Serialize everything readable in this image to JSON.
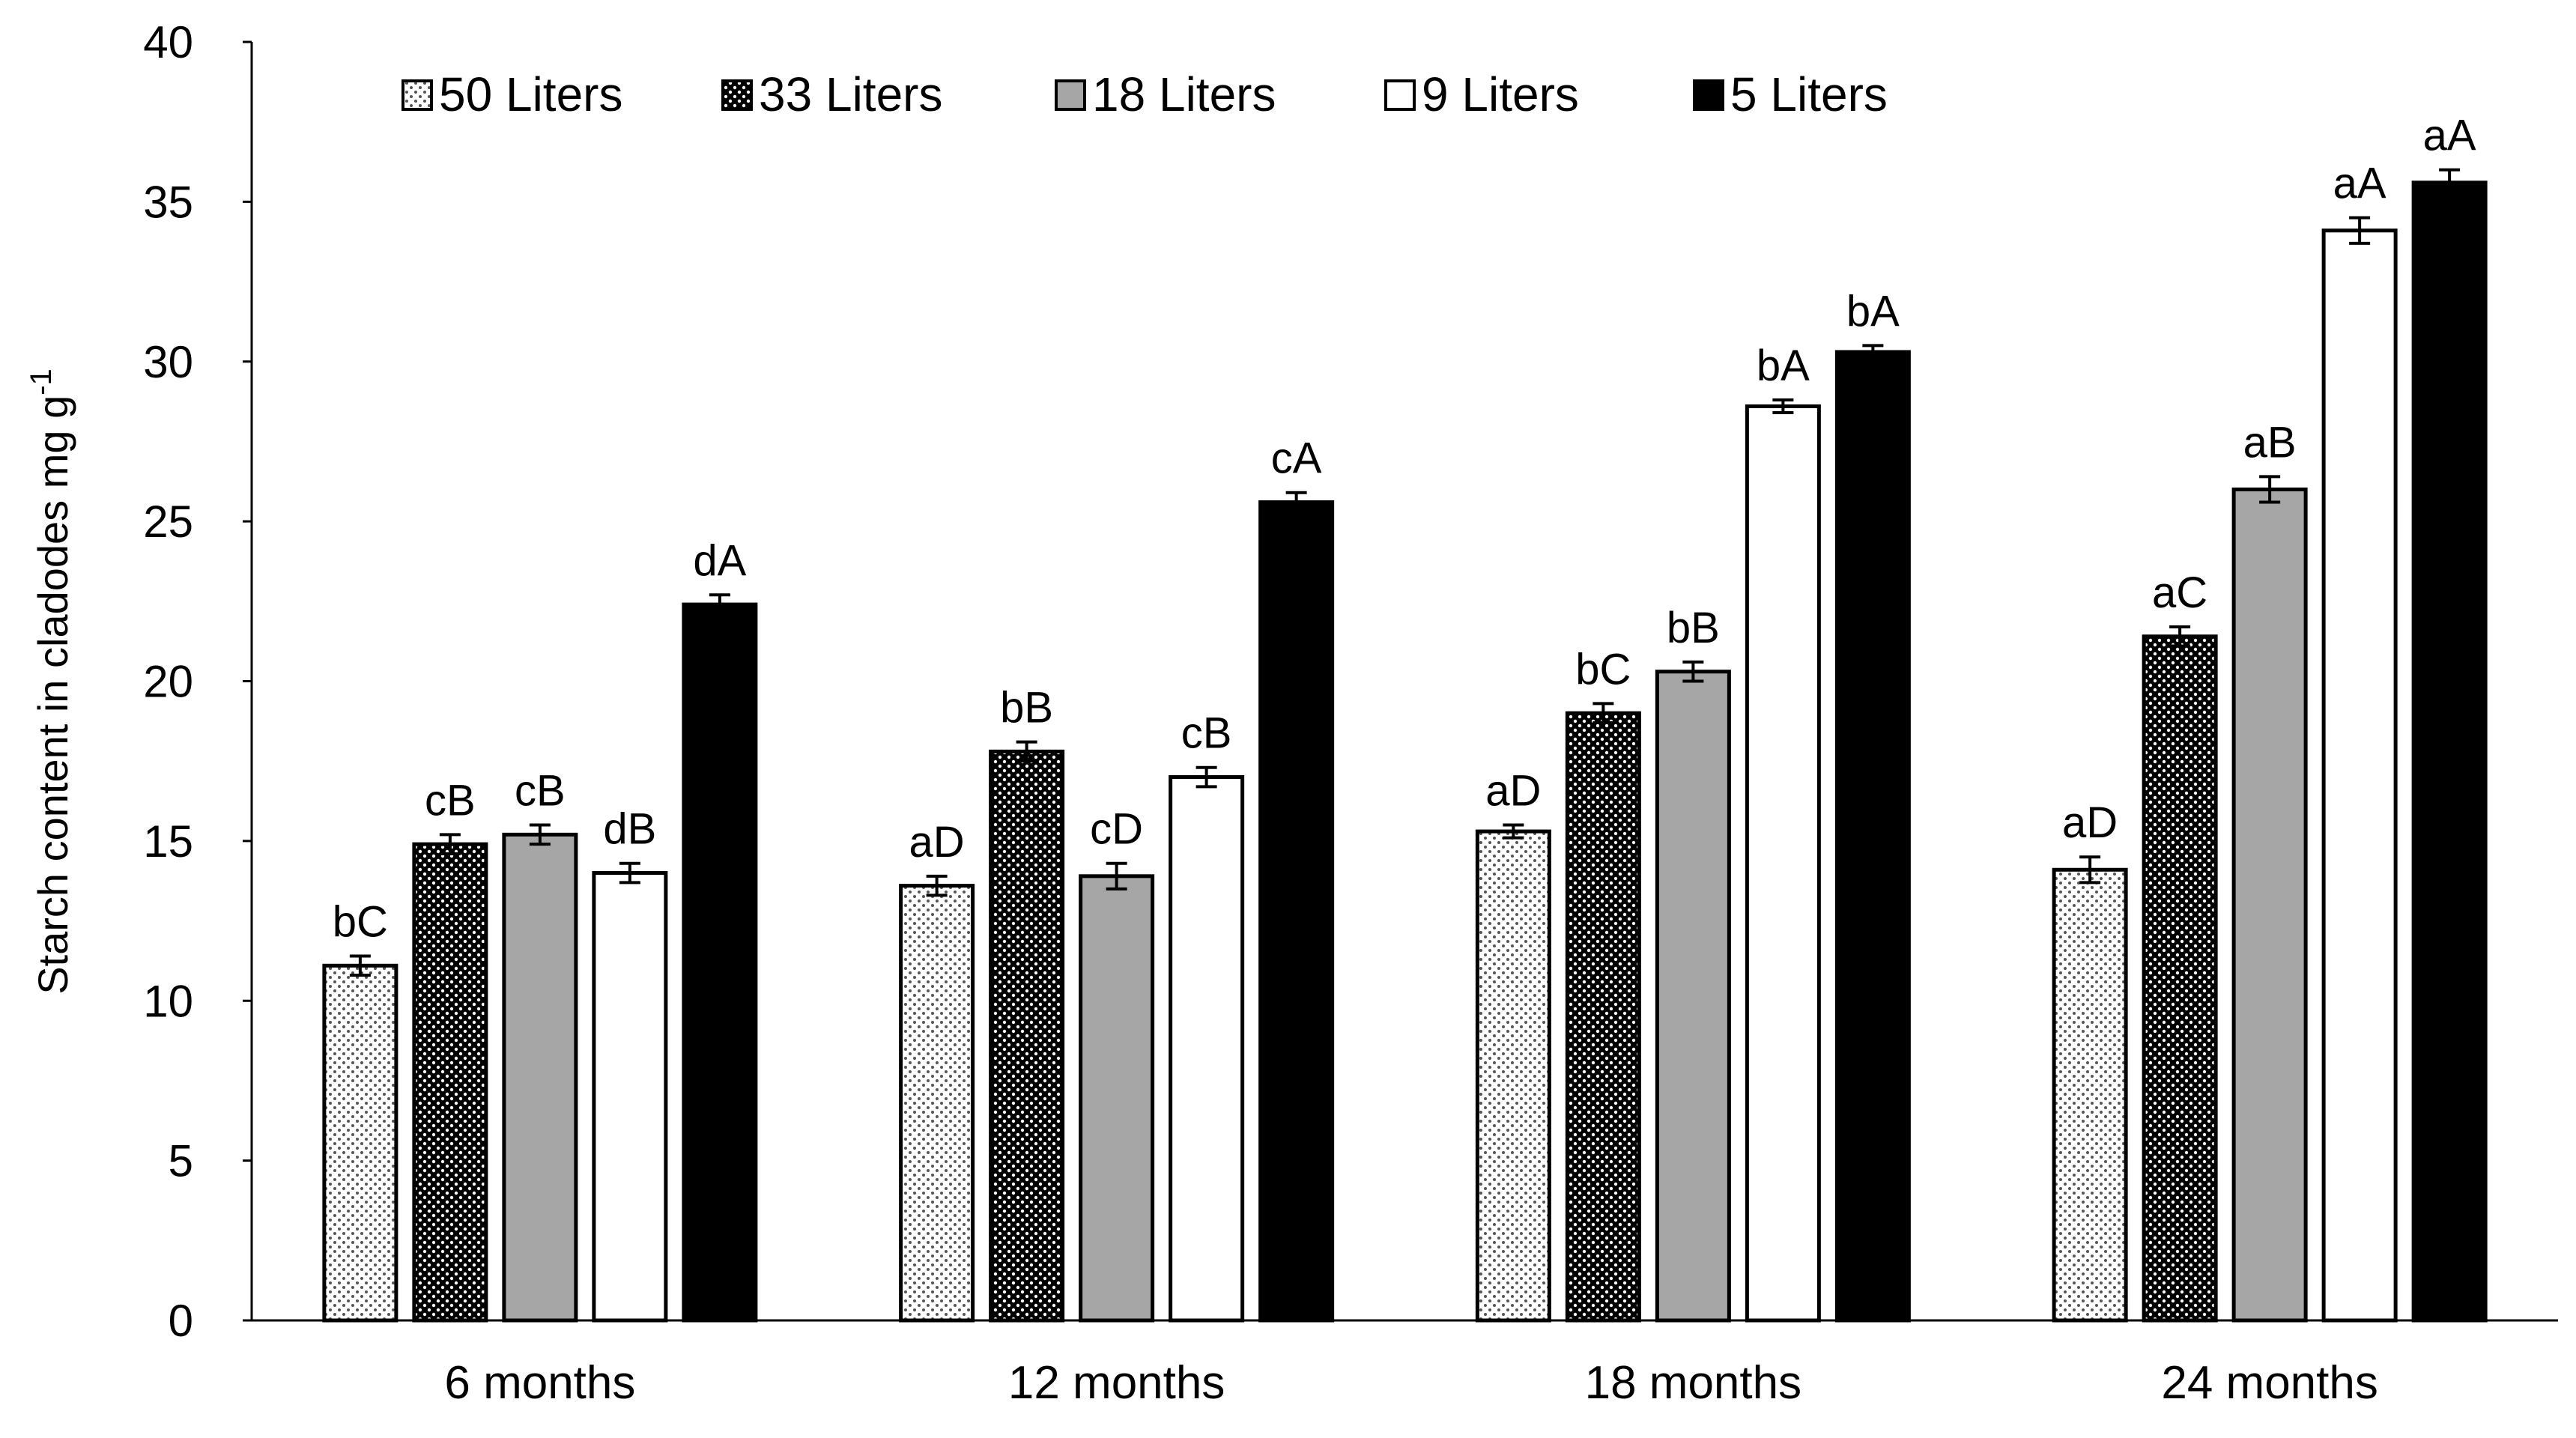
{
  "chart_data": {
    "type": "bar",
    "title": "",
    "xlabel": "",
    "ylabel": "Starch content in cladodes mg g",
    "ylabel_superscript": "-1",
    "ylim": [
      0,
      40
    ],
    "yticks": [
      0,
      5,
      10,
      15,
      20,
      25,
      30,
      35,
      40
    ],
    "legend_position": "top",
    "categories": [
      "6 months",
      "12 months",
      "18 months",
      "24 months"
    ],
    "series": [
      {
        "name": "50 Liters",
        "fill": "dotted-light",
        "values": [
          11.1,
          13.6,
          15.3,
          14.1
        ],
        "errors": [
          0.3,
          0.3,
          0.2,
          0.4
        ],
        "labels": [
          "bC",
          "aD",
          "aD",
          "aD"
        ]
      },
      {
        "name": "33 Liters",
        "fill": "dotted-dark",
        "values": [
          14.9,
          17.8,
          19.0,
          21.4
        ],
        "errors": [
          0.3,
          0.3,
          0.3,
          0.3
        ],
        "labels": [
          "cB",
          "bB",
          "bC",
          "aC"
        ]
      },
      {
        "name": "18 Liters",
        "fill": "gray",
        "values": [
          15.2,
          13.9,
          20.3,
          26.0
        ],
        "errors": [
          0.3,
          0.4,
          0.3,
          0.4
        ],
        "labels": [
          "cB",
          "cD",
          "bB",
          "aB"
        ]
      },
      {
        "name": "9 Liters",
        "fill": "white",
        "values": [
          14.0,
          17.0,
          28.6,
          34.1
        ],
        "errors": [
          0.3,
          0.3,
          0.2,
          0.4
        ],
        "labels": [
          "dB",
          "cB",
          "bA",
          "aA"
        ]
      },
      {
        "name": "5 Liters",
        "fill": "black",
        "values": [
          22.4,
          25.6,
          30.3,
          35.6
        ],
        "errors": [
          0.3,
          0.3,
          0.2,
          0.4
        ],
        "labels": [
          "dA",
          "cA",
          "bA",
          "aA"
        ]
      }
    ],
    "colors": {
      "axis": "#000000",
      "gray_fill": "#a6a6a6",
      "black_fill": "#000000",
      "white_fill": "#ffffff",
      "light_dot_bg": "#ffffff",
      "light_dot_fg": "#555555",
      "dark_dot_bg": "#000000",
      "dark_dot_fg": "#ffffff"
    }
  }
}
